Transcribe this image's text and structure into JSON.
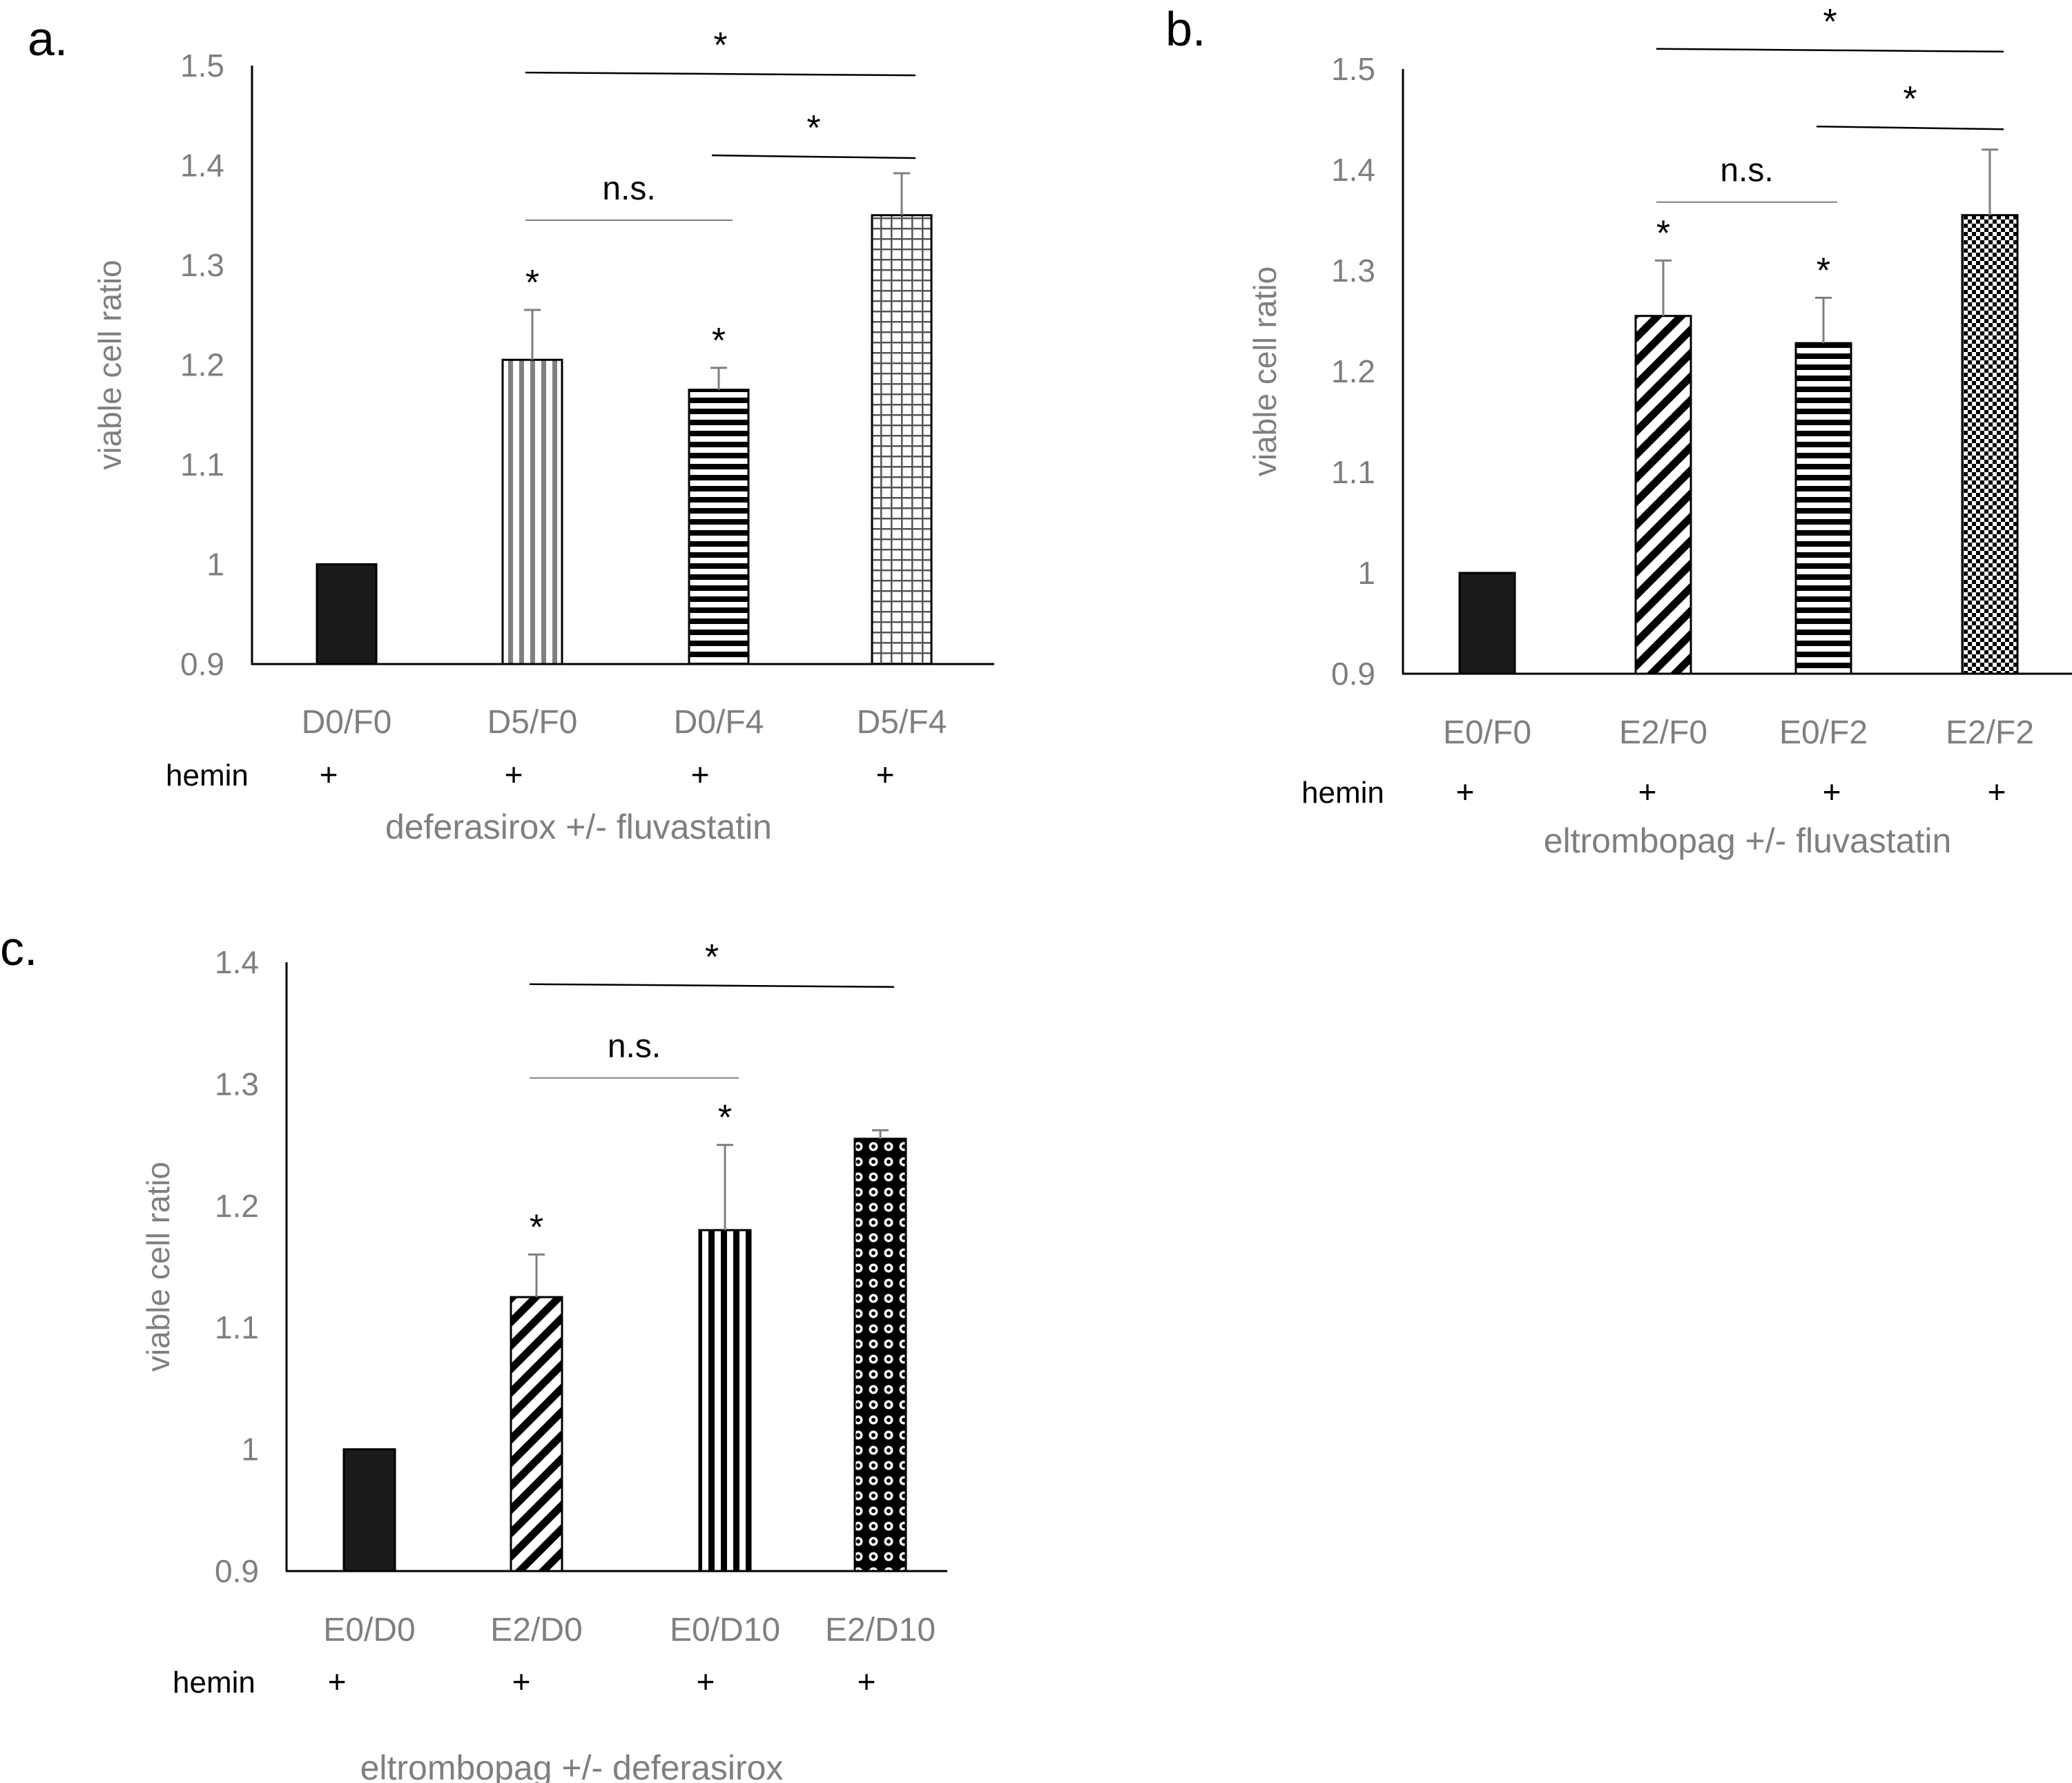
{
  "chart_data": [
    {
      "type": "bar",
      "panel_label": "a.",
      "ylabel": "viable cell ratio",
      "xlabel": "deferasirox +/- fluvastatin",
      "row_label": "hemin",
      "ylim": [
        0.9,
        1.5
      ],
      "yticks": [
        "0.9",
        "1",
        "1.1",
        "1.2",
        "1.3",
        "1.4",
        "1.5"
      ],
      "categories": [
        "D0/F0",
        "D5/F0",
        "D0/F4",
        "D5/F4"
      ],
      "row_marks": [
        "+",
        "+",
        "+",
        "+"
      ],
      "values": [
        1.0,
        1.205,
        1.175,
        1.35
      ],
      "errors": [
        0,
        0.05,
        0.022,
        0.042
      ],
      "patterns": [
        "solid",
        "vertical",
        "horizontal",
        "grid"
      ],
      "bar_stars": [
        "",
        "*",
        "*",
        ""
      ],
      "brackets": [
        {
          "from": 1,
          "to": 3,
          "label": "*",
          "y": 1.493
        },
        {
          "from": 2,
          "to": 3,
          "label": "*",
          "y": 1.41
        },
        {
          "from": 1,
          "to": 2,
          "label": "n.s.",
          "y": 1.345
        }
      ],
      "grid": false,
      "legend": "none"
    },
    {
      "type": "bar",
      "panel_label": "b.",
      "ylabel": "viable cell ratio",
      "xlabel": "eltrombopag +/- fluvastatin",
      "row_label": "hemin",
      "ylim": [
        0.9,
        1.5
      ],
      "yticks": [
        "0.9",
        "1",
        "1.1",
        "1.2",
        "1.3",
        "1.4",
        "1.5"
      ],
      "categories": [
        "E0/F0",
        "E2/F0",
        "E0/F2",
        "E2/F2"
      ],
      "row_marks": [
        "+",
        "+",
        "+",
        "+"
      ],
      "values": [
        1.0,
        1.255,
        1.228,
        1.355
      ],
      "errors": [
        0,
        0.055,
        0.045,
        0.065
      ],
      "patterns": [
        "solid",
        "diagonal",
        "horizontal",
        "checker"
      ],
      "bar_stars": [
        "",
        "*",
        "*",
        ""
      ],
      "brackets": [
        {
          "from": 1,
          "to": 3,
          "label": "*",
          "y": 1.52
        },
        {
          "from": 2,
          "to": 3,
          "label": "*",
          "y": 1.443
        },
        {
          "from": 1,
          "to": 2,
          "label": "n.s.",
          "y": 1.368
        }
      ],
      "grid": false,
      "legend": "none"
    },
    {
      "type": "bar",
      "panel_label": "c.",
      "ylabel": "viable cell ratio",
      "xlabel": "eltrombopag +/- deferasirox",
      "row_label": "hemin",
      "ylim": [
        0.9,
        1.4
      ],
      "yticks": [
        "0.9",
        "1",
        "1.1",
        "1.2",
        "1.3",
        "1.4"
      ],
      "categories": [
        "E0/D0",
        "E2/D0",
        "E0/D10",
        "E2/D10"
      ],
      "row_marks": [
        "+",
        "+",
        "+",
        "+"
      ],
      "values": [
        1.0,
        1.125,
        1.18,
        1.255
      ],
      "errors": [
        0,
        0.035,
        0.07,
        0.007
      ],
      "patterns": [
        "solid",
        "diagonal",
        "vertical-bold",
        "dots"
      ],
      "bar_stars": [
        "",
        "*",
        "*",
        ""
      ],
      "brackets": [
        {
          "from": 1,
          "to": 3,
          "label": "*",
          "y": 1.382
        },
        {
          "from": 1,
          "to": 2,
          "label": "n.s.",
          "y": 1.305
        }
      ],
      "grid": false,
      "legend": "none"
    }
  ]
}
